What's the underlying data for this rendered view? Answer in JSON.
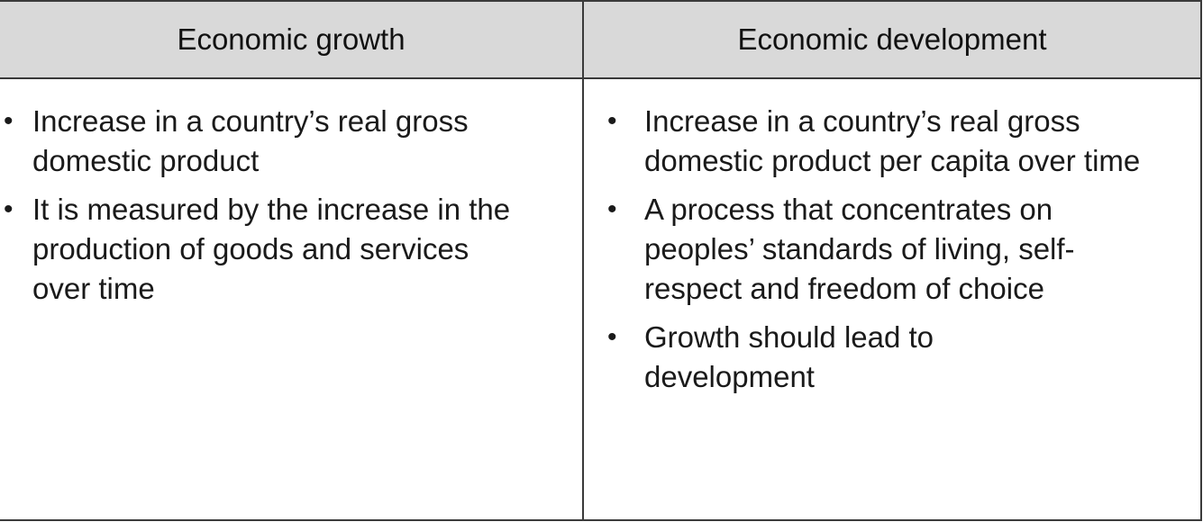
{
  "table": {
    "headers": [
      "Economic growth",
      "Economic development"
    ],
    "header_background": "#d9d9d9",
    "border_color": "#3a3a3a",
    "columns": [
      {
        "bullets": [
          "Increase in a country’s real gross domestic product",
          "It is measured by the increase in the production of goods and services over time"
        ]
      },
      {
        "bullets": [
          "Increase in a country’s real gross domestic product per capita over time",
          "A process that concentrates on peoples’ standards of living, self-respect and freedom of choice",
          "Growth should lead to development"
        ]
      }
    ]
  }
}
